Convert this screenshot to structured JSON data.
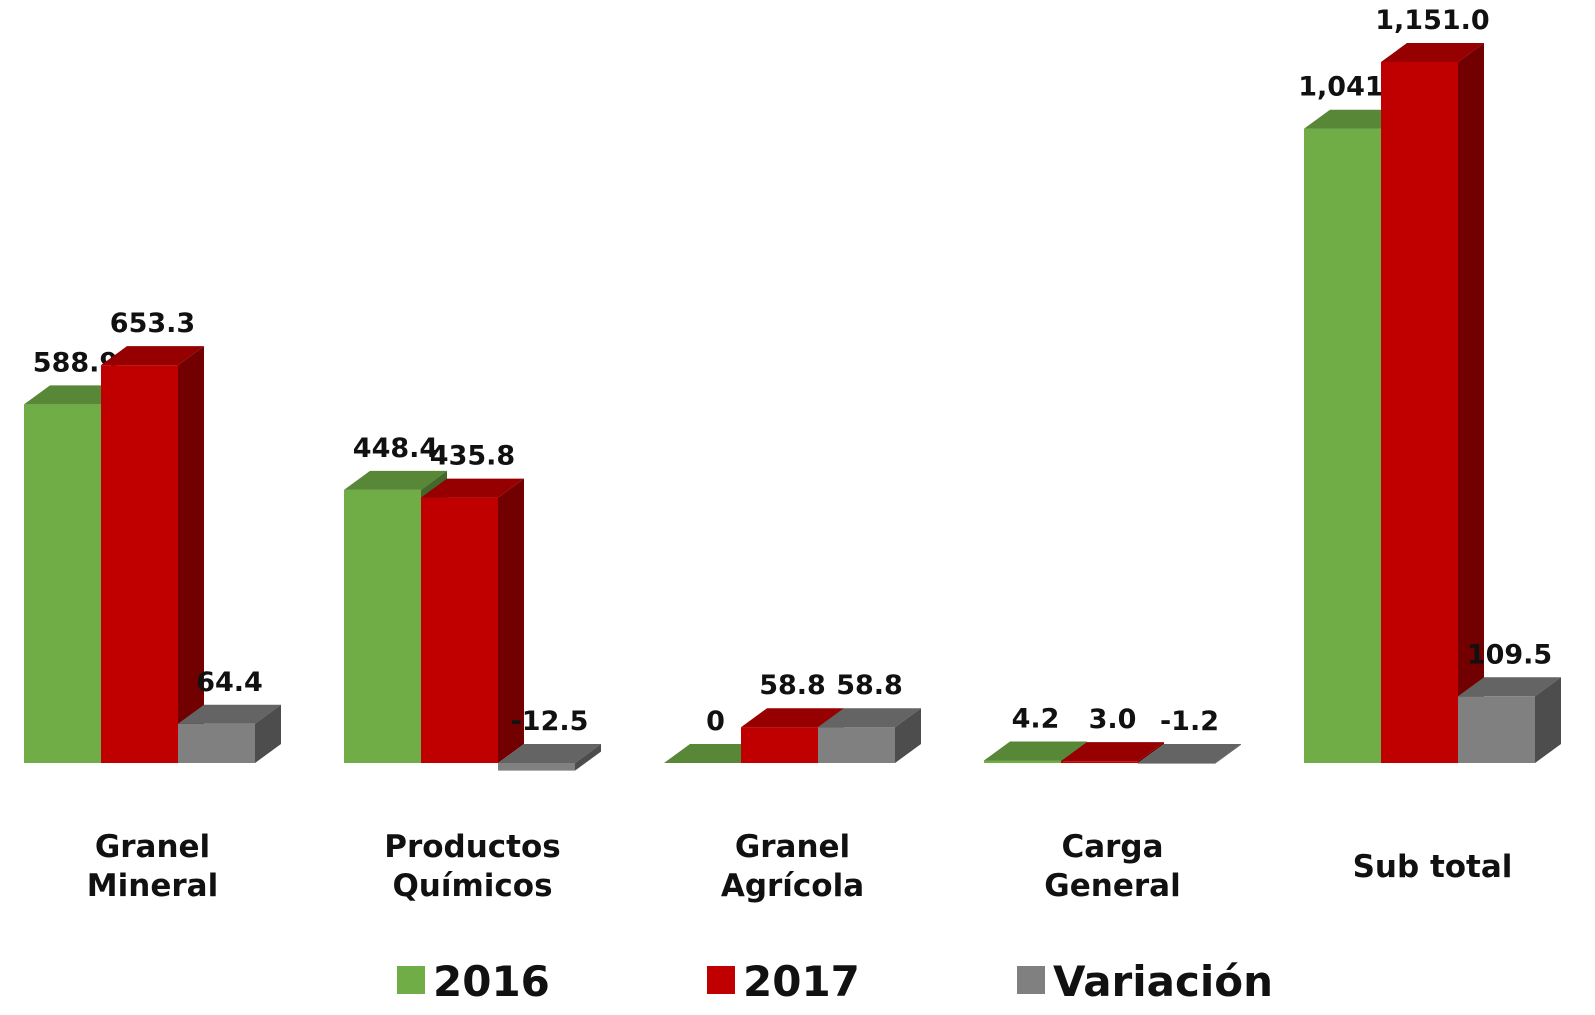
{
  "chart_data": {
    "type": "bar3d",
    "categories": [
      "Granel Mineral",
      "Productos Químicos",
      "Granel Agrícola",
      "Carga General",
      "Sub total"
    ],
    "series": [
      {
        "name": "2016",
        "color": "#70ad47",
        "values": [
          588.9,
          448.4,
          0,
          4.2,
          1041.5
        ],
        "value_labels": [
          "588.9",
          "448.4",
          "0",
          "4.2",
          "1,041.5"
        ]
      },
      {
        "name": "2017",
        "color": "#c00000",
        "values": [
          653.3,
          435.8,
          58.8,
          3.0,
          1151.0
        ],
        "value_labels": [
          "653.3",
          "435.8",
          "58.8",
          "3.0",
          "1,151.0"
        ]
      },
      {
        "name": "Variación",
        "color": "#808080",
        "values": [
          64.4,
          -12.5,
          58.8,
          -1.2,
          109.5
        ],
        "value_labels": [
          "64.4",
          "-12.5",
          "58.8",
          "-1.2",
          "109.5"
        ]
      }
    ],
    "legend": "bottom"
  }
}
